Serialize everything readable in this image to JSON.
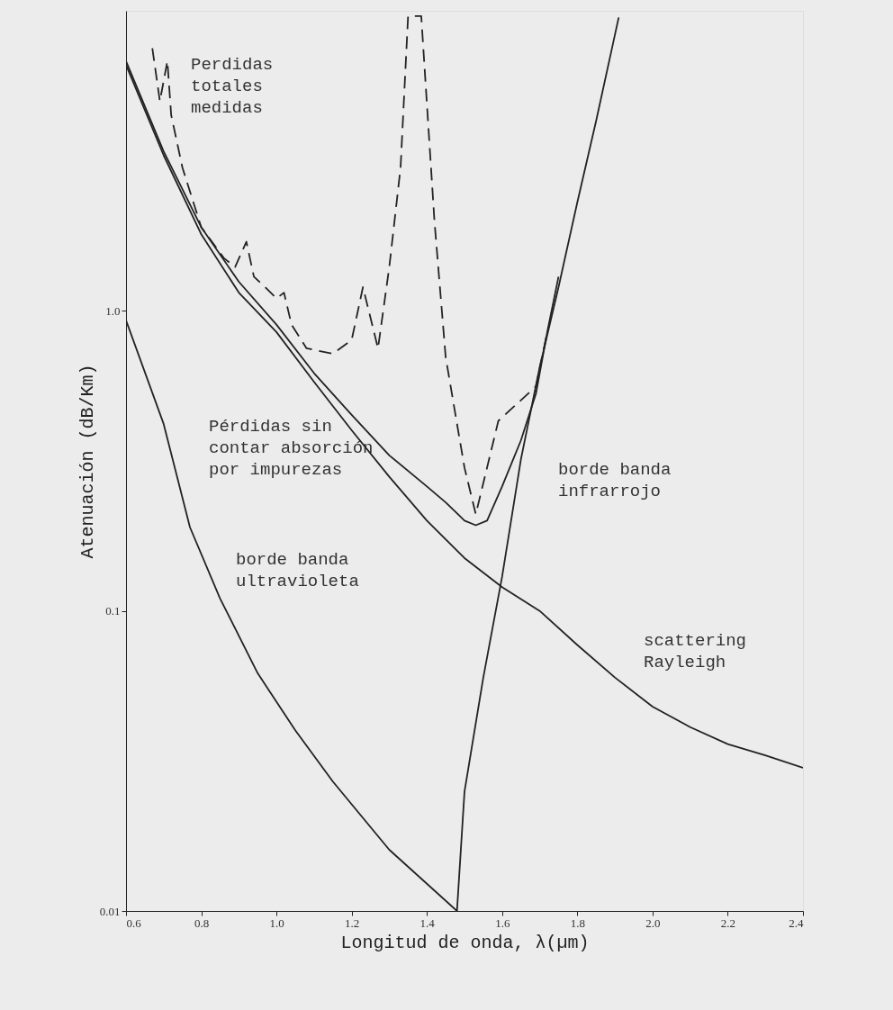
{
  "chart_data": {
    "type": "line",
    "xlabel": "Longitud de onda, λ(µm)",
    "ylabel": "Atenuación (dB/Km)",
    "log": "y",
    "grid": false,
    "marker": "none",
    "xlim": [
      0.6,
      2.4
    ],
    "xticks": [
      0.6,
      0.8,
      {
        "value": 1,
        "label": "1.0"
      },
      1.2,
      1.4,
      1.6,
      1.8,
      {
        "value": 2,
        "label": "2.0"
      },
      2.2,
      2.4
    ],
    "ylim": [
      0.01,
      10
    ],
    "yticks": [
      0.01,
      0.1,
      {
        "value": 1,
        "label": "1.0"
      }
    ],
    "series": [
      {
        "name": "Perdidas totales medidas",
        "color": "#222222",
        "line_style": "dashed",
        "x": [
          0.67,
          0.69,
          0.71,
          0.72,
          0.75,
          0.8,
          0.86,
          0.89,
          0.92,
          0.94,
          0.97,
          1.0,
          1.02,
          1.04,
          1.08,
          1.15,
          1.2,
          1.23,
          1.27,
          1.3,
          1.33,
          1.35,
          1.385,
          1.42,
          1.45,
          1.5,
          1.53,
          1.59,
          1.69,
          1.72
        ],
        "values": [
          7.5,
          5.0,
          6.8,
          4.5,
          3.0,
          1.9,
          1.5,
          1.4,
          1.7,
          1.3,
          1.2,
          1.1,
          1.15,
          0.9,
          0.75,
          0.72,
          0.8,
          1.2,
          0.75,
          1.4,
          3,
          9.6,
          9.6,
          2,
          0.7,
          0.3,
          0.21,
          0.43,
          0.56,
          0.85
        ]
      },
      {
        "name": "Pérdidas sin contar absorción por impurezas",
        "color": "#222222",
        "line_style": "solid",
        "x": [
          0.6,
          0.7,
          0.8,
          0.9,
          1.0,
          1.1,
          1.2,
          1.3,
          1.4,
          1.45,
          1.5,
          1.53,
          1.56,
          1.6,
          1.65,
          1.69,
          1.72,
          1.75
        ],
        "values": [
          6.8,
          3.4,
          1.9,
          1.25,
          0.9,
          0.62,
          0.45,
          0.33,
          0.26,
          0.23,
          0.2,
          0.193,
          0.2,
          0.26,
          0.37,
          0.53,
          0.85,
          1.3
        ]
      },
      {
        "name": "borde banda ultravioleta",
        "color": "#222222",
        "line_style": "solid",
        "x": [
          0.6,
          0.7,
          0.77,
          0.85,
          0.95,
          1.05,
          1.15,
          1.3,
          1.48
        ],
        "values": [
          0.93,
          0.42,
          0.19,
          0.11,
          0.062,
          0.04,
          0.027,
          0.016,
          0.01
        ]
      },
      {
        "name": "borde banda infrarrojo",
        "color": "#222222",
        "line_style": "solid",
        "x": [
          1.48,
          1.5,
          1.55,
          1.6,
          1.65,
          1.7,
          1.75,
          1.8,
          1.85,
          1.91
        ],
        "values": [
          0.01,
          0.025,
          0.06,
          0.13,
          0.32,
          0.65,
          1.2,
          2.3,
          4.3,
          9.5
        ]
      },
      {
        "name": "scattering Rayleigh",
        "color": "#222222",
        "line_style": "solid",
        "x": [
          0.6,
          0.7,
          0.8,
          0.9,
          1.0,
          1.1,
          1.2,
          1.3,
          1.4,
          1.5,
          1.6,
          1.7,
          1.8,
          1.9,
          2.0,
          2.1,
          2.2,
          2.3,
          2.4
        ],
        "values": [
          6.6,
          3.3,
          1.8,
          1.15,
          0.85,
          0.58,
          0.4,
          0.28,
          0.2,
          0.15,
          0.12,
          0.1,
          0.077,
          0.06,
          0.048,
          0.041,
          0.036,
          0.033,
          0.03
        ]
      }
    ]
  }
}
